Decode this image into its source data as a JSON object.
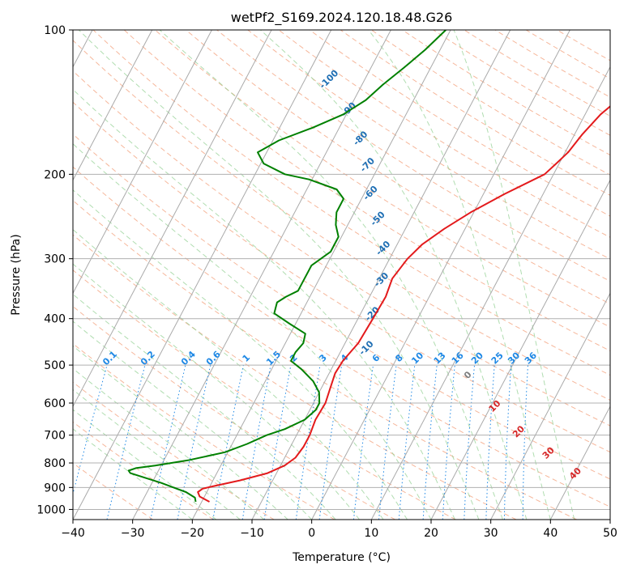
{
  "chart_data": {
    "type": "line",
    "subtype": "skew-T log-P diagram",
    "title": "wetPf2_S169.2024.120.18.48.G26",
    "xlabel": "Temperature (°C)",
    "ylabel": "Pressure (hPa)",
    "xlim": [
      -40,
      50
    ],
    "ylim": [
      1050,
      100
    ],
    "y_scale": "log",
    "x_ticks": [
      -40,
      -30,
      -20,
      -10,
      0,
      10,
      20,
      30,
      40,
      50
    ],
    "x_tick_labels": [
      "−40",
      "−30",
      "−20",
      "−10",
      "0",
      "10",
      "20",
      "30",
      "40",
      "50"
    ],
    "y_ticks": [
      1000,
      900,
      800,
      700,
      600,
      500,
      400,
      300,
      200,
      100
    ],
    "y_tick_labels": [
      "1000",
      "900",
      "800",
      "700",
      "600",
      "500",
      "400",
      "300",
      "200",
      "100"
    ],
    "grid": true,
    "series": [
      {
        "role": "temperature",
        "color": "#e31a1c",
        "points": [
          [
            964,
            -18.7
          ],
          [
            940,
            -20.8
          ],
          [
            920,
            -21.5
          ],
          [
            905,
            -21.0
          ],
          [
            895,
            -19.5
          ],
          [
            870,
            -15.5
          ],
          [
            840,
            -11.5
          ],
          [
            810,
            -9.3
          ],
          [
            780,
            -8.2
          ],
          [
            740,
            -7.8
          ],
          [
            700,
            -7.8
          ],
          [
            650,
            -8.2
          ],
          [
            600,
            -8.0
          ],
          [
            560,
            -8.5
          ],
          [
            520,
            -9.0
          ],
          [
            490,
            -8.8
          ],
          [
            450,
            -7.8
          ],
          [
            400,
            -7.5
          ],
          [
            360,
            -7.3
          ],
          [
            330,
            -7.8
          ],
          [
            300,
            -7.0
          ],
          [
            280,
            -5.8
          ],
          [
            260,
            -3.5
          ],
          [
            240,
            -0.5
          ],
          [
            220,
            3.5
          ],
          [
            200,
            8.5
          ],
          [
            190,
            9.5
          ],
          [
            180,
            10.5
          ],
          [
            165,
            11.3
          ],
          [
            150,
            12.6
          ],
          [
            140,
            14.2
          ],
          [
            130,
            16.3
          ],
          [
            120,
            18.5
          ],
          [
            110,
            21.3
          ],
          [
            100,
            23.5
          ]
        ]
      },
      {
        "role": "dewpoint",
        "color": "#008000",
        "points": [
          [
            964,
            -21.0
          ],
          [
            945,
            -21.5
          ],
          [
            920,
            -23.5
          ],
          [
            900,
            -26.0
          ],
          [
            880,
            -28.5
          ],
          [
            860,
            -31.5
          ],
          [
            840,
            -34.5
          ],
          [
            830,
            -35.0
          ],
          [
            820,
            -34.0
          ],
          [
            810,
            -31.0
          ],
          [
            790,
            -26.0
          ],
          [
            760,
            -20.5
          ],
          [
            730,
            -17.5
          ],
          [
            700,
            -15.0
          ],
          [
            680,
            -12.5
          ],
          [
            650,
            -10.0
          ],
          [
            620,
            -9.0
          ],
          [
            600,
            -9.0
          ],
          [
            570,
            -10.0
          ],
          [
            540,
            -12.0
          ],
          [
            510,
            -15.0
          ],
          [
            490,
            -17.5
          ],
          [
            470,
            -17.5
          ],
          [
            450,
            -17.0
          ],
          [
            430,
            -17.5
          ],
          [
            410,
            -21.0
          ],
          [
            390,
            -24.5
          ],
          [
            370,
            -25.0
          ],
          [
            360,
            -24.0
          ],
          [
            350,
            -22.5
          ],
          [
            330,
            -22.5
          ],
          [
            310,
            -22.5
          ],
          [
            290,
            -20.5
          ],
          [
            270,
            -20.5
          ],
          [
            255,
            -22.0
          ],
          [
            240,
            -23.0
          ],
          [
            225,
            -23.0
          ],
          [
            215,
            -25.0
          ],
          [
            205,
            -30.5
          ],
          [
            200,
            -35.0
          ],
          [
            190,
            -39.5
          ],
          [
            180,
            -41.5
          ],
          [
            170,
            -39.0
          ],
          [
            160,
            -34.5
          ],
          [
            150,
            -30.5
          ],
          [
            140,
            -28.0
          ],
          [
            130,
            -26.5
          ],
          [
            120,
            -24.5
          ],
          [
            110,
            -22.5
          ],
          [
            100,
            -20.8
          ]
        ]
      }
    ],
    "reference_lines": {
      "isotherms": "gray solid, skewed",
      "dry_adiabats": "orange dashed",
      "moist_adiabats": "green dashed",
      "mixing_ratio": "blue dotted"
    },
    "moist_adiabat_labels": [
      "-100",
      "-90",
      "-80",
      "-70",
      "-60",
      "-50",
      "-40",
      "-30",
      "-20",
      "-10"
    ],
    "mixing_ratio_labels": [
      "0.1",
      "0.2",
      "0.4",
      "0.6",
      "1",
      "1.5",
      "2",
      "3",
      "4",
      "6",
      "8",
      "10",
      "13",
      "16",
      "20",
      "25",
      "30",
      "36"
    ],
    "mixing_ratio_values": [
      0.1,
      0.2,
      0.4,
      0.6,
      1,
      1.5,
      2,
      3,
      4,
      6,
      8,
      10,
      13,
      16,
      20,
      25,
      30,
      36
    ],
    "dry_adiabat_labels": [
      "0",
      "10",
      "20",
      "30",
      "40"
    ]
  }
}
